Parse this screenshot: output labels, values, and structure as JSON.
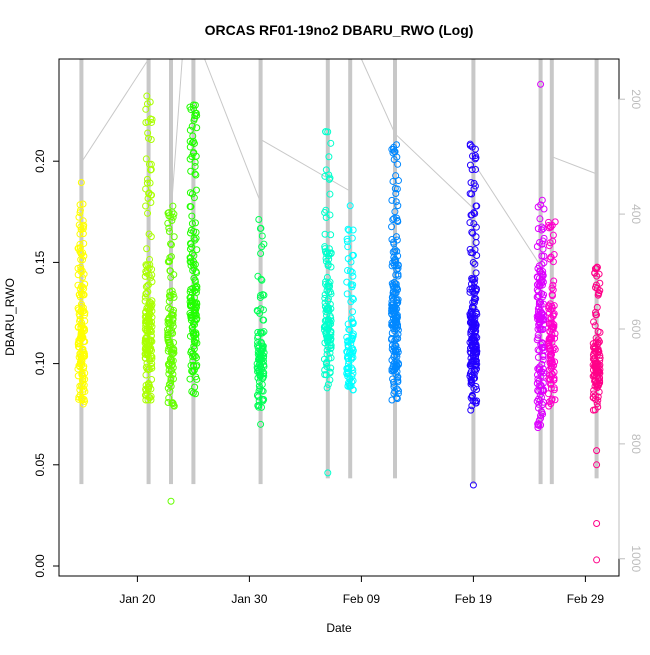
{
  "chart_data": {
    "type": "scatter",
    "title": "ORCAS RF01-19no2 DBARU_RWO (Log)",
    "xlabel": "Date",
    "ylabel": "DBARU_RWO",
    "ylim": [
      0.0,
      0.25
    ],
    "y_ticks": [
      0.0,
      0.05,
      0.1,
      0.15,
      0.2
    ],
    "y_tick_labels": [
      "0.00",
      "0.05",
      "0.10",
      "0.15",
      "0.20"
    ],
    "x_ticks": [
      "2016-01-20",
      "2016-01-30",
      "2016-02-09",
      "2016-02-19",
      "2016-02-29"
    ],
    "x_tick_labels": [
      "Jan 20",
      "Jan 30",
      "Feb 09",
      "Feb 19",
      "Feb 29"
    ],
    "xlim": [
      "2016-01-13",
      "2016-03-03"
    ],
    "secondary_axis": {
      "side": "right",
      "inverted": true,
      "range": [
        130,
        1030
      ],
      "ticks": [
        200,
        400,
        600,
        800,
        1000
      ],
      "tick_labels": [
        "200",
        "400",
        "600",
        "800",
        "1000"
      ],
      "color": "#bdbdbd"
    },
    "grid": false,
    "marker": "open-circle",
    "series": [
      {
        "date": "2016-01-15",
        "color": "#ffff00",
        "y_min": 0.08,
        "y_max": 0.19,
        "center": 0.11,
        "count": 150,
        "outliers": []
      },
      {
        "date": "2016-01-21",
        "color": "#aaff00",
        "y_min": 0.082,
        "y_max": 0.235,
        "center": 0.11,
        "count": 180,
        "outliers": []
      },
      {
        "date": "2016-01-23",
        "color": "#66ff00",
        "y_min": 0.079,
        "y_max": 0.18,
        "center": 0.11,
        "count": 110,
        "outliers": [
          0.032
        ]
      },
      {
        "date": "2016-01-25",
        "color": "#22ff00",
        "y_min": 0.083,
        "y_max": 0.23,
        "center": 0.12,
        "count": 160,
        "outliers": []
      },
      {
        "date": "2016-01-31",
        "color": "#00ff55",
        "y_min": 0.078,
        "y_max": 0.172,
        "center": 0.1,
        "count": 100,
        "outliers": [
          0.07
        ]
      },
      {
        "date": "2016-02-06",
        "color": "#00ffcc",
        "y_min": 0.088,
        "y_max": 0.215,
        "center": 0.12,
        "count": 130,
        "outliers": [
          0.046
        ]
      },
      {
        "date": "2016-02-08",
        "color": "#00ffff",
        "y_min": 0.087,
        "y_max": 0.167,
        "center": 0.105,
        "count": 90,
        "outliers": [
          0.178
        ]
      },
      {
        "date": "2016-02-12",
        "color": "#0088ff",
        "y_min": 0.082,
        "y_max": 0.214,
        "center": 0.12,
        "count": 190,
        "outliers": []
      },
      {
        "date": "2016-02-19",
        "color": "#2200ff",
        "y_min": 0.077,
        "y_max": 0.209,
        "center": 0.11,
        "count": 190,
        "outliers": [
          0.04
        ]
      },
      {
        "date": "2016-02-25",
        "color": "#dd00ff",
        "y_min": 0.068,
        "y_max": 0.182,
        "center": 0.12,
        "count": 150,
        "outliers": [
          0.073,
          0.238
        ]
      },
      {
        "date": "2016-02-26",
        "color": "#ff00cc",
        "y_min": 0.079,
        "y_max": 0.173,
        "center": 0.11,
        "count": 110,
        "outliers": []
      },
      {
        "date": "2016-03-01",
        "color": "#ff0088",
        "y_min": 0.077,
        "y_max": 0.148,
        "center": 0.095,
        "count": 120,
        "outliers": [
          0.057,
          0.05,
          0.021,
          0.003
        ]
      }
    ],
    "altitude_tracks": [
      {
        "date": "2016-01-15",
        "top": 130,
        "bottom": 870
      },
      {
        "date": "2016-01-21",
        "top": 130,
        "bottom": 870
      },
      {
        "date": "2016-01-23",
        "top": 130,
        "bottom": 870
      },
      {
        "date": "2016-01-25",
        "top": 130,
        "bottom": 870
      },
      {
        "date": "2016-01-31",
        "top": 130,
        "bottom": 870
      },
      {
        "date": "2016-02-06",
        "top": 130,
        "bottom": 860
      },
      {
        "date": "2016-02-08",
        "top": 130,
        "bottom": 860
      },
      {
        "date": "2016-02-12",
        "top": 130,
        "bottom": 860
      },
      {
        "date": "2016-02-19",
        "top": 130,
        "bottom": 870
      },
      {
        "date": "2016-02-25",
        "top": 130,
        "bottom": 870
      },
      {
        "date": "2016-02-26",
        "top": 130,
        "bottom": 870
      },
      {
        "date": "2016-03-01",
        "top": 130,
        "bottom": 860
      }
    ],
    "connector_lines": [
      {
        "from": [
          "2016-01-15",
          310
        ],
        "to": [
          "2016-01-21",
          130
        ]
      },
      {
        "from": [
          "2016-01-21",
          130
        ],
        "to": [
          "2016-01-23",
          130
        ]
      },
      {
        "from": [
          "2016-01-23",
          400
        ],
        "to": [
          "2016-01-24",
          130
        ]
      },
      {
        "from": [
          "2016-01-26",
          130
        ],
        "to": [
          "2016-01-31",
          380
        ]
      },
      {
        "from": [
          "2016-01-31",
          270
        ],
        "to": [
          "2016-02-08",
          360
        ]
      },
      {
        "from": [
          "2016-02-09",
          130
        ],
        "to": [
          "2016-02-12",
          260
        ]
      },
      {
        "from": [
          "2016-02-12",
          260
        ],
        "to": [
          "2016-02-19",
          390
        ]
      },
      {
        "from": [
          "2016-02-19",
          310
        ],
        "to": [
          "2016-02-25",
          490
        ]
      },
      {
        "from": [
          "2016-02-26",
          300
        ],
        "to": [
          "2016-03-01",
          330
        ]
      }
    ]
  }
}
